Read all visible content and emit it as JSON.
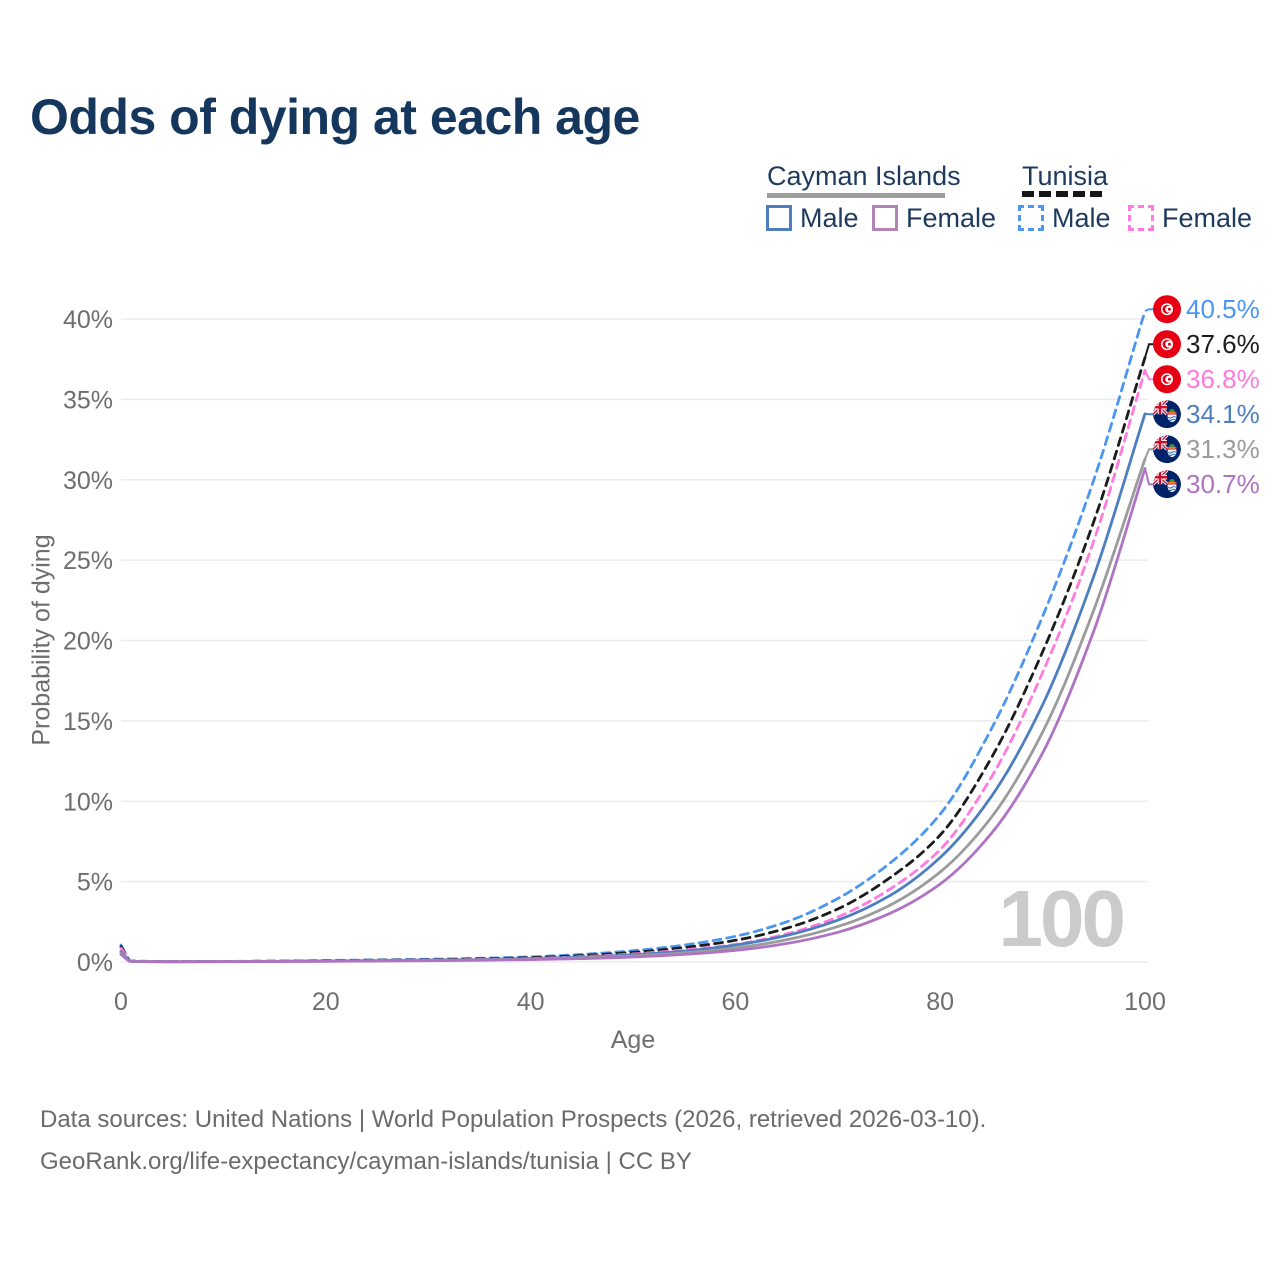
{
  "title": "Odds of dying at each age",
  "watermark": "100",
  "legend": {
    "groups": [
      {
        "label": "Cayman Islands",
        "line_style": "solid",
        "underline_color": "#9e9e9e",
        "items": [
          {
            "label": "Male",
            "color": "#4d7fc0"
          },
          {
            "label": "Female",
            "color": "#b283b7"
          }
        ]
      },
      {
        "label": "Tunisia",
        "line_style": "dashed",
        "underline_color": "#161616",
        "items": [
          {
            "label": "Male",
            "color": "#4b96f0"
          },
          {
            "label": "Female",
            "color": "#ff7ade"
          }
        ]
      }
    ]
  },
  "footer": {
    "line1": "Data sources: United Nations | World Population Prospects (2026, retrieved 2026-03-10).",
    "line2": "GeoRank.org/life-expectancy/cayman-islands/tunisia | CC BY"
  },
  "chart_data": {
    "type": "line",
    "title": "Odds of dying at each age",
    "xlabel": "Age",
    "ylabel": "Probability of dying",
    "xlim": [
      0,
      100
    ],
    "ylim": [
      0,
      40
    ],
    "x_ticks": [
      "0",
      "20",
      "40",
      "60",
      "80",
      "100"
    ],
    "y_ticks": [
      "0%",
      "5%",
      "10%",
      "15%",
      "20%",
      "25%",
      "30%",
      "35%",
      "40%"
    ],
    "grid": "horizontal",
    "legend_position": "top-right",
    "ages": [
      0,
      1,
      5,
      10,
      15,
      20,
      25,
      30,
      35,
      40,
      45,
      50,
      55,
      60,
      65,
      70,
      75,
      80,
      85,
      90,
      95,
      100
    ],
    "series": [
      {
        "name": "Tunisia Male",
        "country": "Tunisia",
        "sex": "Male",
        "flag": "tn",
        "dashed": true,
        "color": "#4b96f0",
        "end_label": "40.5%",
        "end_value": 40.5,
        "values": [
          1.05,
          0.06,
          0.03,
          0.04,
          0.06,
          0.1,
          0.13,
          0.17,
          0.23,
          0.32,
          0.47,
          0.7,
          1.05,
          1.6,
          2.5,
          3.95,
          6.1,
          9.2,
          14.5,
          21.5,
          30.0,
          40.5
        ]
      },
      {
        "name": "Tunisia Both sexes",
        "country": "Tunisia",
        "sex": "Both",
        "flag": "tn",
        "dashed": true,
        "color": "#1c1c1c",
        "end_label": "37.6%",
        "end_value": 37.6,
        "values": [
          0.95,
          0.055,
          0.028,
          0.035,
          0.05,
          0.08,
          0.11,
          0.14,
          0.19,
          0.27,
          0.4,
          0.6,
          0.9,
          1.35,
          2.1,
          3.3,
          5.2,
          7.9,
          12.7,
          19.3,
          27.4,
          37.6
        ]
      },
      {
        "name": "Tunisia Female",
        "country": "Tunisia",
        "sex": "Female",
        "flag": "tn",
        "dashed": true,
        "color": "#ff7ade",
        "end_label": "36.8%",
        "end_value": 36.8,
        "values": [
          0.85,
          0.05,
          0.025,
          0.03,
          0.045,
          0.07,
          0.09,
          0.12,
          0.16,
          0.22,
          0.33,
          0.5,
          0.75,
          1.1,
          1.75,
          2.8,
          4.5,
          7.0,
          11.5,
          18.0,
          26.2,
          36.8
        ]
      },
      {
        "name": "Cayman Islands Male",
        "country": "Cayman Islands",
        "sex": "Male",
        "flag": "ky",
        "dashed": false,
        "color": "#4d7fc0",
        "end_label": "34.1%",
        "end_value": 34.1,
        "values": [
          0.65,
          0.04,
          0.02,
          0.025,
          0.04,
          0.065,
          0.085,
          0.11,
          0.15,
          0.21,
          0.3,
          0.45,
          0.68,
          1.05,
          1.65,
          2.6,
          4.1,
          6.5,
          10.3,
          16.0,
          24.0,
          34.1
        ]
      },
      {
        "name": "Cayman Islands Both sexes",
        "country": "Cayman Islands",
        "sex": "Both",
        "flag": "ky",
        "dashed": false,
        "color": "#9b9b9b",
        "end_label": "31.3%",
        "end_value": 31.3,
        "values": [
          0.55,
          0.035,
          0.018,
          0.022,
          0.035,
          0.055,
          0.075,
          0.095,
          0.13,
          0.18,
          0.26,
          0.38,
          0.57,
          0.87,
          1.38,
          2.2,
          3.5,
          5.6,
          9.0,
          14.3,
          21.9,
          31.3
        ]
      },
      {
        "name": "Cayman Islands Female",
        "country": "Cayman Islands",
        "sex": "Female",
        "flag": "ky",
        "dashed": false,
        "color": "#ae73c2",
        "end_label": "30.7%",
        "end_value": 30.7,
        "values": [
          0.48,
          0.03,
          0.015,
          0.02,
          0.03,
          0.045,
          0.06,
          0.08,
          0.11,
          0.15,
          0.21,
          0.31,
          0.47,
          0.72,
          1.15,
          1.85,
          3.0,
          4.85,
          8.0,
          13.0,
          20.6,
          30.7
        ]
      }
    ]
  }
}
